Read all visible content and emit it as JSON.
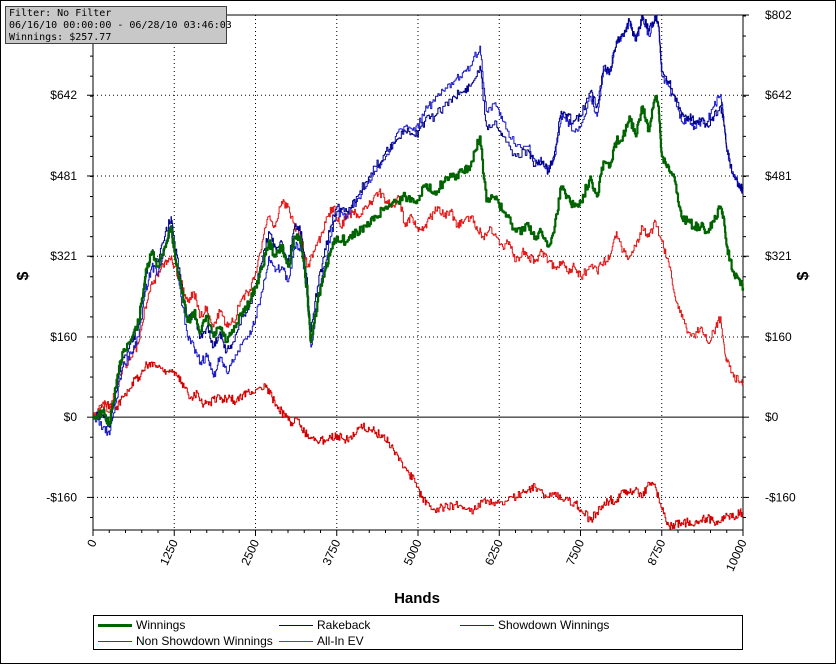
{
  "filter_box": {
    "line1": "Filter: No Filter",
    "line2": "06/16/10 00:00:00 - 06/28/10 03:46:03",
    "line3": "Winnings: $257.77"
  },
  "chart_data": {
    "type": "line",
    "xlabel": "Hands",
    "ylabel_left": "$",
    "ylabel_right": "$",
    "xlim": [
      0,
      10000
    ],
    "ylim": [
      -225,
      802
    ],
    "x_ticks": [
      0,
      1250,
      2500,
      3750,
      5000,
      6250,
      7500,
      8750,
      10000
    ],
    "x_tick_labels": [
      "0",
      "1250",
      "2500",
      "3750",
      "5000",
      "6250",
      "7500",
      "8750",
      "10000"
    ],
    "y_ticks": [
      -160,
      0,
      160,
      321,
      481,
      642,
      802
    ],
    "y_tick_labels": [
      "-$160",
      "$0",
      "$160",
      "$321",
      "$481",
      "$642",
      "$802"
    ],
    "grid": true,
    "legend_placement": "bottom",
    "series": [
      {
        "name": "Winnings",
        "color": "#006400",
        "width": 2.2,
        "x": [
          0,
          150,
          250,
          350,
          450,
          600,
          700,
          800,
          900,
          1000,
          1100,
          1200,
          1250,
          1350,
          1450,
          1550,
          1650,
          1750,
          1850,
          1950,
          2050,
          2150,
          2300,
          2400,
          2500,
          2600,
          2700,
          2800,
          2900,
          3000,
          3100,
          3200,
          3300,
          3350,
          3450,
          3550,
          3650,
          3750,
          3900,
          4050,
          4200,
          4350,
          4500,
          4650,
          4800,
          4950,
          5100,
          5250,
          5400,
          5550,
          5700,
          5800,
          5950,
          6050,
          6200,
          6300,
          6500,
          6700,
          6800,
          6900,
          7000,
          7100,
          7200,
          7300,
          7400,
          7500,
          7650,
          7750,
          7850,
          7950,
          8050,
          8150,
          8250,
          8350,
          8450,
          8550,
          8650,
          8700,
          8750,
          8850,
          8950,
          9050,
          9150,
          9250,
          9350,
          9450,
          9550,
          9650,
          9700,
          9750,
          9850,
          9950,
          10000
        ],
        "y": [
          0,
          10,
          -15,
          60,
          130,
          160,
          190,
          280,
          330,
          300,
          340,
          380,
          330,
          260,
          190,
          210,
          170,
          200,
          160,
          180,
          150,
          170,
          210,
          230,
          260,
          300,
          350,
          320,
          340,
          300,
          360,
          350,
          240,
          150,
          230,
          280,
          330,
          360,
          350,
          370,
          380,
          400,
          420,
          430,
          440,
          430,
          460,
          450,
          470,
          480,
          490,
          500,
          560,
          430,
          440,
          410,
          370,
          380,
          360,
          370,
          340,
          380,
          460,
          440,
          420,
          430,
          480,
          440,
          510,
          500,
          550,
          560,
          600,
          560,
          620,
          570,
          640,
          620,
          520,
          500,
          470,
          400,
          390,
          380,
          380,
          370,
          390,
          420,
          400,
          340,
          290,
          270,
          258
        ]
      },
      {
        "name": "Rakeback",
        "color": "#00008b",
        "width": 1.0,
        "x": [
          0,
          150,
          250,
          350,
          450,
          600,
          700,
          800,
          900,
          1000,
          1100,
          1200,
          1250,
          1350,
          1450,
          1550,
          1650,
          1750,
          1850,
          1950,
          2050,
          2150,
          2300,
          2400,
          2500,
          2600,
          2700,
          2800,
          2900,
          3000,
          3100,
          3200,
          3300,
          3350,
          3450,
          3550,
          3650,
          3750,
          3900,
          4050,
          4200,
          4350,
          4500,
          4650,
          4800,
          4950,
          5100,
          5250,
          5400,
          5550,
          5700,
          5800,
          5950,
          6050,
          6200,
          6300,
          6500,
          6700,
          6800,
          6900,
          7000,
          7100,
          7200,
          7300,
          7400,
          7500,
          7650,
          7750,
          7850,
          7950,
          8050,
          8150,
          8250,
          8350,
          8450,
          8550,
          8650,
          8700,
          8750,
          8850,
          8950,
          9050,
          9150,
          9250,
          9350,
          9450,
          9550,
          9650,
          9700,
          9750,
          9850,
          9950,
          10000
        ],
        "y": [
          0,
          5,
          -20,
          50,
          120,
          150,
          185,
          275,
          330,
          310,
          360,
          400,
          350,
          270,
          200,
          200,
          160,
          180,
          140,
          170,
          130,
          150,
          200,
          220,
          260,
          310,
          370,
          340,
          350,
          310,
          380,
          370,
          260,
          170,
          260,
          320,
          380,
          420,
          410,
          440,
          470,
          500,
          530,
          550,
          570,
          560,
          590,
          600,
          620,
          640,
          650,
          660,
          700,
          580,
          590,
          560,
          520,
          530,
          500,
          510,
          490,
          530,
          610,
          600,
          590,
          600,
          650,
          620,
          700,
          690,
          750,
          760,
          790,
          750,
          800,
          770,
          800,
          780,
          690,
          670,
          640,
          600,
          600,
          590,
          590,
          580,
          600,
          620,
          590,
          530,
          480,
          460,
          455
        ]
      },
      {
        "name": "Showdown Winnings",
        "color": "#1c1cc8",
        "width": 1.0,
        "x": [
          0,
          150,
          250,
          350,
          450,
          600,
          700,
          800,
          900,
          1000,
          1100,
          1200,
          1250,
          1350,
          1450,
          1550,
          1650,
          1750,
          1850,
          1950,
          2050,
          2150,
          2300,
          2400,
          2500,
          2600,
          2700,
          2800,
          2900,
          3000,
          3100,
          3200,
          3300,
          3350,
          3450,
          3550,
          3650,
          3750,
          3900,
          4050,
          4200,
          4350,
          4500,
          4650,
          4800,
          4950,
          5100,
          5250,
          5400,
          5550,
          5700,
          5800,
          5950,
          6050,
          6200,
          6300,
          6500,
          6700,
          6800,
          6900,
          7000,
          7100,
          7200,
          7300,
          7400,
          7500,
          7650,
          7750,
          7850,
          7950,
          8050,
          8150,
          8250,
          8350,
          8450,
          8550,
          8650,
          8700,
          8750,
          8850,
          8950,
          9050,
          9150,
          9250,
          9350,
          9450,
          9550,
          9650,
          9700,
          9750,
          9850,
          9950,
          10000
        ],
        "y": [
          0,
          -20,
          -35,
          30,
          100,
          130,
          160,
          250,
          300,
          290,
          340,
          380,
          330,
          240,
          160,
          140,
          110,
          120,
          80,
          120,
          90,
          110,
          150,
          160,
          200,
          250,
          320,
          290,
          300,
          270,
          340,
          340,
          230,
          140,
          230,
          300,
          360,
          410,
          400,
          430,
          460,
          490,
          520,
          560,
          580,
          570,
          610,
          630,
          650,
          670,
          690,
          700,
          740,
          610,
          620,
          590,
          540,
          540,
          510,
          510,
          490,
          520,
          600,
          590,
          570,
          580,
          640,
          600,
          690,
          690,
          750,
          760,
          790,
          750,
          800,
          760,
          800,
          780,
          680,
          660,
          630,
          590,
          590,
          580,
          590,
          590,
          620,
          640,
          600,
          530,
          480,
          460,
          450
        ]
      },
      {
        "name": "Non Showdown Winnings",
        "color": "#d40000",
        "width": 1.0,
        "x": [
          0,
          150,
          250,
          350,
          450,
          600,
          700,
          800,
          900,
          1000,
          1100,
          1200,
          1300,
          1400,
          1500,
          1600,
          1700,
          1800,
          1900,
          2000,
          2100,
          2200,
          2300,
          2400,
          2500,
          2650,
          2750,
          2850,
          2950,
          3050,
          3150,
          3250,
          3350,
          3450,
          3550,
          3650,
          3750,
          3850,
          3950,
          4050,
          4150,
          4250,
          4350,
          4450,
          4550,
          4650,
          4750,
          4850,
          4950,
          5050,
          5150,
          5250,
          5400,
          5550,
          5700,
          5850,
          6000,
          6150,
          6300,
          6450,
          6600,
          6700,
          6800,
          6950,
          7100,
          7250,
          7400,
          7500,
          7650,
          7750,
          7850,
          7950,
          8050,
          8150,
          8250,
          8350,
          8450,
          8550,
          8650,
          8750,
          8850,
          8950,
          9050,
          9150,
          9250,
          9350,
          9450,
          9550,
          9650,
          9750,
          9850,
          9950,
          10000
        ],
        "y": [
          0,
          20,
          25,
          15,
          40,
          70,
          80,
          100,
          110,
          100,
          95,
          90,
          80,
          60,
          40,
          50,
          25,
          30,
          40,
          35,
          40,
          30,
          45,
          50,
          55,
          60,
          40,
          20,
          0,
          -10,
          -5,
          -30,
          -40,
          -50,
          -45,
          -40,
          -35,
          -45,
          -40,
          -30,
          -20,
          -25,
          -30,
          -40,
          -50,
          -70,
          -90,
          -110,
          -130,
          -160,
          -170,
          -185,
          -180,
          -175,
          -180,
          -185,
          -165,
          -170,
          -175,
          -160,
          -150,
          -145,
          -140,
          -155,
          -150,
          -165,
          -170,
          -185,
          -205,
          -190,
          -175,
          -165,
          -170,
          -145,
          -150,
          -140,
          -160,
          -130,
          -140,
          -185,
          -215,
          -215,
          -210,
          -210,
          -215,
          -205,
          -200,
          -210,
          -210,
          -195,
          -200,
          -190,
          -195
        ]
      },
      {
        "name": "All-In EV",
        "color": "#e31a1a",
        "width": 1.0,
        "x": [
          0,
          150,
          250,
          350,
          450,
          600,
          700,
          800,
          900,
          1000,
          1100,
          1200,
          1250,
          1350,
          1450,
          1550,
          1650,
          1750,
          1850,
          1950,
          2050,
          2150,
          2300,
          2400,
          2500,
          2600,
          2700,
          2800,
          2900,
          3000,
          3100,
          3200,
          3300,
          3400,
          3500,
          3600,
          3700,
          3800,
          3900,
          4000,
          4100,
          4200,
          4300,
          4400,
          4500,
          4600,
          4700,
          4800,
          4900,
          5000,
          5100,
          5200,
          5300,
          5400,
          5500,
          5600,
          5700,
          5800,
          5900,
          6000,
          6100,
          6200,
          6300,
          6400,
          6500,
          6600,
          6700,
          6800,
          6900,
          7000,
          7100,
          7200,
          7300,
          7400,
          7500,
          7650,
          7750,
          7850,
          7950,
          8050,
          8150,
          8250,
          8350,
          8450,
          8550,
          8650,
          8750,
          8850,
          8950,
          9050,
          9150,
          9250,
          9350,
          9450,
          9550,
          9650,
          9700,
          9750,
          9850,
          9950,
          10000
        ],
        "y": [
          0,
          30,
          10,
          60,
          100,
          120,
          150,
          220,
          270,
          280,
          310,
          320,
          300,
          270,
          230,
          250,
          200,
          220,
          180,
          210,
          180,
          190,
          240,
          250,
          290,
          350,
          400,
          380,
          430,
          420,
          380,
          360,
          300,
          330,
          360,
          400,
          420,
          380,
          400,
          410,
          400,
          420,
          430,
          450,
          430,
          420,
          440,
          380,
          400,
          370,
          380,
          400,
          420,
          400,
          410,
          380,
          390,
          400,
          380,
          360,
          380,
          360,
          340,
          350,
          310,
          330,
          320,
          310,
          330,
          310,
          300,
          310,
          290,
          300,
          280,
          300,
          290,
          310,
          320,
          370,
          330,
          320,
          340,
          380,
          360,
          390,
          350,
          310,
          240,
          200,
          170,
          160,
          180,
          150,
          170,
          200,
          150,
          110,
          80,
          70,
          68
        ]
      }
    ]
  }
}
